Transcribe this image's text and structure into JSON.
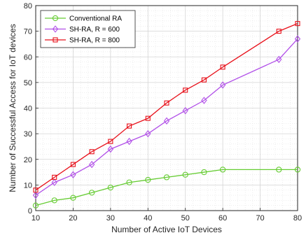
{
  "chart_data": {
    "type": "line",
    "xlabel": "Number of Active IoT Devices",
    "ylabel": "Number of Successful Access for IoT devices",
    "xlim": [
      10,
      80
    ],
    "ylim": [
      0,
      80
    ],
    "xticks": [
      10,
      20,
      30,
      40,
      50,
      60,
      70,
      80
    ],
    "yticks": [
      0,
      10,
      20,
      30,
      40,
      50,
      60,
      70,
      80
    ],
    "grid": true,
    "legend_position": "top-left",
    "series": [
      {
        "name": "Conventional RA",
        "color": "#66cc33",
        "marker": "circle",
        "x": [
          10,
          15,
          20,
          25,
          30,
          35,
          40,
          45,
          50,
          55,
          60,
          75,
          80
        ],
        "y": [
          2,
          4,
          5,
          7,
          9,
          11,
          12,
          13,
          14,
          15,
          16,
          16,
          16
        ]
      },
      {
        "name": "SH-RA, R = 600",
        "color": "#b14fe8",
        "marker": "diamond",
        "x": [
          10,
          15,
          20,
          25,
          30,
          35,
          40,
          45,
          50,
          55,
          60,
          75,
          80
        ],
        "y": [
          6,
          11,
          14,
          18,
          24,
          27,
          30,
          35,
          39,
          43,
          49,
          59,
          67
        ]
      },
      {
        "name": "SH-RA, R = 800",
        "color": "#e8101a",
        "marker": "square",
        "x": [
          10,
          15,
          20,
          25,
          30,
          35,
          40,
          45,
          50,
          55,
          60,
          75,
          80
        ],
        "y": [
          8,
          13,
          18,
          23,
          27,
          33,
          36,
          42,
          47,
          51,
          56,
          70,
          73
        ]
      }
    ]
  }
}
